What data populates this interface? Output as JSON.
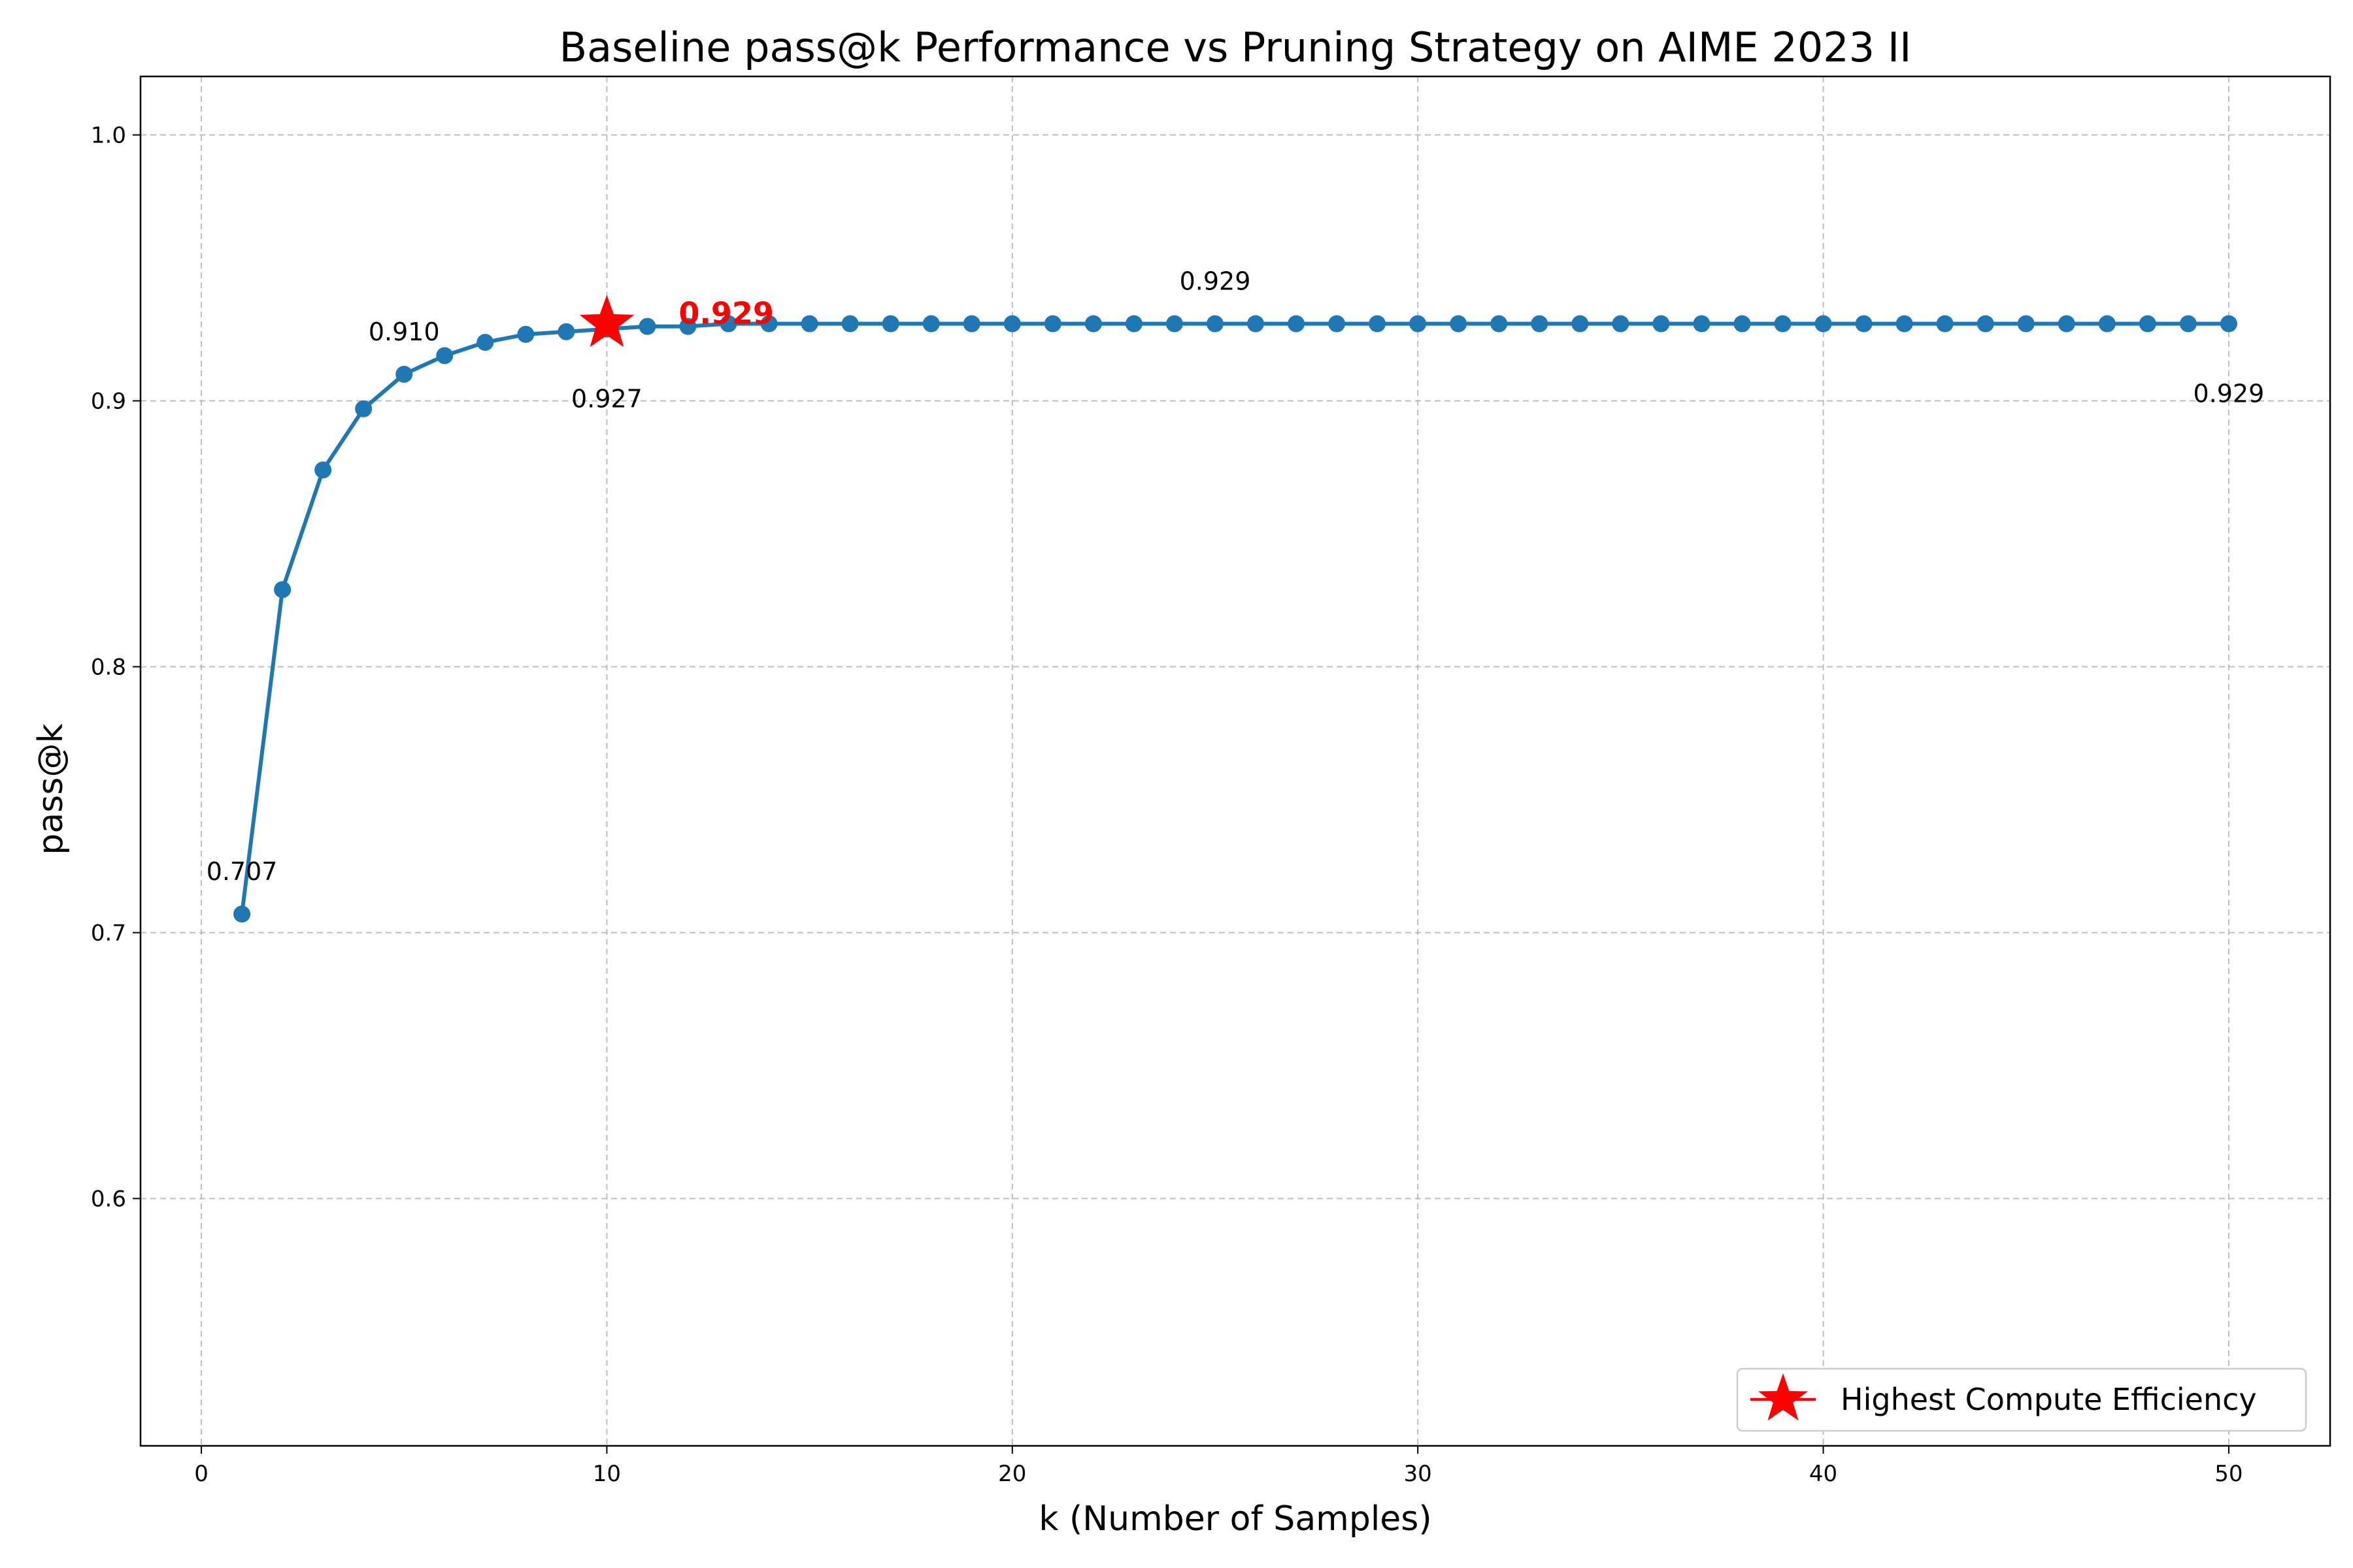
{
  "chart_data": {
    "type": "line",
    "title": "Baseline pass@k Performance vs Pruning Strategy on AIME 2023 II",
    "xlabel": "k (Number of Samples)",
    "ylabel": "pass@k",
    "xlim": [
      -1.5,
      52.5
    ],
    "ylim": [
      0.507,
      1.022
    ],
    "xticks": [
      0,
      10,
      20,
      30,
      40,
      50
    ],
    "xtick_labels": [
      "0",
      "10",
      "20",
      "30",
      "40",
      "50"
    ],
    "yticks": [
      0.6,
      0.7,
      0.8,
      0.9,
      1.0
    ],
    "ytick_labels": [
      "0.6",
      "0.7",
      "0.8",
      "0.9",
      "1.0"
    ],
    "grid": true,
    "legend_position": "bottom-right",
    "series": [
      {
        "x": [
          1,
          2,
          3,
          4,
          5,
          6,
          7,
          8,
          9,
          10,
          11,
          12,
          13,
          14,
          15,
          16,
          17,
          18,
          19,
          20,
          21,
          22,
          23,
          24,
          25,
          26,
          27,
          28,
          29,
          30,
          31,
          32,
          33,
          34,
          35,
          36,
          37,
          38,
          39,
          40,
          41,
          42,
          43,
          44,
          45,
          46,
          47,
          48,
          49,
          50
        ],
        "values": [
          0.707,
          0.829,
          0.874,
          0.897,
          0.91,
          0.917,
          0.922,
          0.925,
          0.926,
          0.927,
          0.928,
          0.928,
          0.929,
          0.929,
          0.929,
          0.929,
          0.929,
          0.929,
          0.929,
          0.929,
          0.929,
          0.929,
          0.929,
          0.929,
          0.929,
          0.929,
          0.929,
          0.929,
          0.929,
          0.929,
          0.929,
          0.929,
          0.929,
          0.929,
          0.929,
          0.929,
          0.929,
          0.929,
          0.929,
          0.929,
          0.929,
          0.929,
          0.929,
          0.929,
          0.929,
          0.929,
          0.929,
          0.929,
          0.929,
          0.929
        ],
        "color": "#1f77b4"
      }
    ],
    "highlight": {
      "name": "Highest Compute Efficiency",
      "x": 10,
      "y": 0.929,
      "label": "0.929",
      "color": "#ff0000"
    },
    "annotations": [
      {
        "x": 1,
        "y": 0.707,
        "text": "0.707",
        "placement": "above"
      },
      {
        "x": 5,
        "y": 0.91,
        "text": "0.910",
        "placement": "above"
      },
      {
        "x": 10,
        "y": 0.927,
        "text": "0.927",
        "placement": "below"
      },
      {
        "x": 25,
        "y": 0.929,
        "text": "0.929",
        "placement": "above"
      },
      {
        "x": 50,
        "y": 0.929,
        "text": "0.929",
        "placement": "below"
      }
    ]
  }
}
